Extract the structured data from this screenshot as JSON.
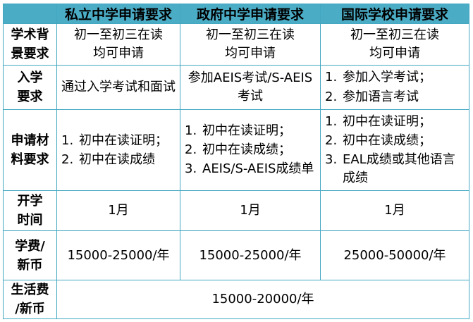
{
  "table": {
    "columns": [
      "",
      "私立中学申请要求",
      "政府中学申请要求",
      "国际学校申请要求"
    ],
    "rows": [
      {
        "label": "学术背\n景要求",
        "cells": [
          {
            "text": "初一至初三在读\n均可申请"
          },
          {
            "text": "初一至初三在读\n均可申请"
          },
          {
            "text": "初一至初三在读\n均可申请"
          }
        ]
      },
      {
        "label": "入学\n要求",
        "cells": [
          {
            "text": "通过入学考试和面试"
          },
          {
            "text": "参加AEIS考试/S-AEIS\n考试"
          },
          {
            "list": [
              "参加入学考试；",
              "参加语言考试"
            ]
          }
        ]
      },
      {
        "label": "申请材\n料要求",
        "cells": [
          {
            "list": [
              "初中在读证明；",
              "初中在读成绩"
            ]
          },
          {
            "list": [
              "初中在读证明；",
              "初中在读成绩；",
              "AEIS/S-AEIS成绩单"
            ]
          },
          {
            "list": [
              "初中在读证明；",
              "初中在读成绩；",
              "EAL成绩或其他语言\n成绩"
            ]
          }
        ]
      },
      {
        "label": "开学\n时间",
        "cells": [
          {
            "text": "1月"
          },
          {
            "text": "1月"
          },
          {
            "text": "1月"
          }
        ]
      },
      {
        "label": "学费/\n新币",
        "cells": [
          {
            "text": "15000-25000/年"
          },
          {
            "text": "15000-25000/年"
          },
          {
            "text": "25000-50000/年"
          }
        ]
      },
      {
        "label": "生活费\n/新币",
        "cells": [
          {
            "text": "15000-20000/年",
            "colspan": 3
          }
        ]
      }
    ]
  },
  "colors": {
    "accent": "#4BACC6",
    "border": "#43A7C2",
    "text": "#000000"
  }
}
